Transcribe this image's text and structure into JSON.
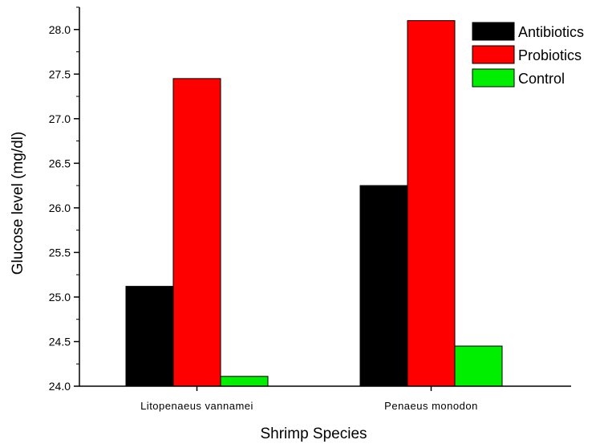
{
  "chart_data": {
    "type": "bar",
    "title": "",
    "xlabel": "Shrimp Species",
    "ylabel": "Glucose level (mg/dl)",
    "categories": [
      "Litopenaeus vannamei",
      "Penaeus monodon"
    ],
    "series": [
      {
        "name": "Antibiotics",
        "color": "#000000",
        "values": [
          25.12,
          26.25
        ]
      },
      {
        "name": "Probiotics",
        "color": "#ff0000",
        "values": [
          27.45,
          28.1
        ]
      },
      {
        "name": "Control",
        "color": "#00ee00",
        "values": [
          24.11,
          24.45
        ]
      }
    ],
    "ylim": [
      24.0,
      28.25
    ],
    "yticks": [
      24.0,
      24.5,
      25.0,
      25.5,
      26.0,
      26.5,
      27.0,
      27.5,
      28.0
    ],
    "ytick_labels": [
      "24.0",
      "24.5",
      "25.0",
      "25.5",
      "26.0",
      "26.5",
      "27.0",
      "27.5",
      "28.0"
    ],
    "legend_position": "top-right",
    "grid": false
  }
}
